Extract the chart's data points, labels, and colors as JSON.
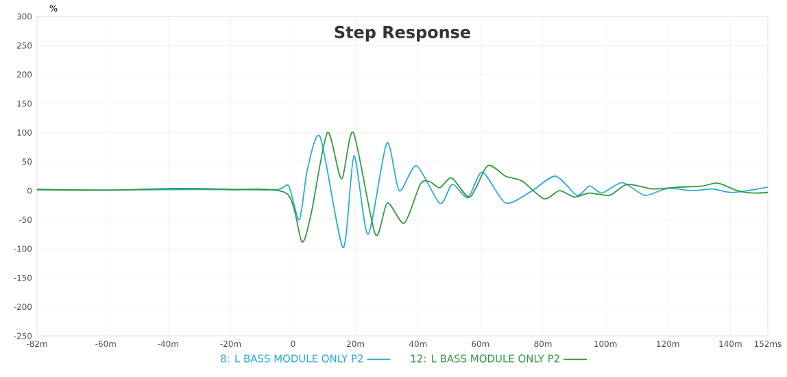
{
  "chart_data": {
    "type": "line",
    "title": "Step Response",
    "ylabel": "%",
    "xlim": [
      -82,
      152
    ],
    "ylim": [
      -250,
      300
    ],
    "xticks": [
      {
        "value": -82,
        "label": "-82m"
      },
      {
        "value": -60,
        "label": "-60m"
      },
      {
        "value": -40,
        "label": "-40m"
      },
      {
        "value": -20,
        "label": "-20m"
      },
      0,
      {
        "value": 20,
        "label": "20m"
      },
      {
        "value": 40,
        "label": "40m"
      },
      {
        "value": 60,
        "label": "60m"
      },
      {
        "value": 80,
        "label": "80m"
      },
      {
        "value": 100,
        "label": "100m"
      },
      {
        "value": 120,
        "label": "120m"
      },
      {
        "value": 140,
        "label": "140m"
      },
      {
        "value": 152,
        "label": "152ms"
      }
    ],
    "yticks": [
      -250,
      -200,
      -150,
      -100,
      -50,
      0,
      50,
      100,
      150,
      200,
      250,
      300
    ],
    "grid": true,
    "legend": "bottom",
    "marker": "none",
    "line_style": "solid",
    "series": [
      {
        "name": "8: L BASS MODULE ONLY P2",
        "color": "#29abd6",
        "x": [
          -82,
          -60,
          -40,
          -20,
          -5,
          -1.4,
          2,
          4.6,
          8.7,
          16,
          19.5,
          24,
          30,
          34,
          39.5,
          47,
          51,
          56,
          60.6,
          68,
          76,
          84,
          90.9,
          94.9,
          98.9,
          105.4,
          112.6,
          119.8,
          127.9,
          134.3,
          140.7,
          152
        ],
        "values": [
          2,
          1,
          2,
          2,
          2,
          8,
          -50,
          37,
          92,
          -98,
          60,
          -75,
          82,
          0,
          43,
          -22,
          11,
          -12,
          32,
          -21,
          -2,
          25,
          -8,
          8,
          -4,
          14,
          -8,
          4,
          0,
          3,
          -3,
          6
        ]
      },
      {
        "name": "12: L BASS MODULE ONLY P2",
        "color": "#2e9a3e",
        "x": [
          -82,
          -60,
          -35,
          -20,
          -2,
          2.8,
          5.8,
          11,
          15.5,
          19.3,
          26.3,
          30.2,
          35.6,
          40.7,
          43.6,
          47,
          50.8,
          56.6,
          62.3,
          68,
          73.2,
          80.4,
          85.3,
          90.1,
          94.9,
          101.3,
          107,
          115,
          123,
          131,
          135.9,
          142.3,
          147.2,
          152
        ],
        "values": [
          2,
          1,
          4,
          2,
          -5,
          -88,
          -39,
          100,
          20,
          100,
          -75,
          -21,
          -56,
          11,
          16,
          5,
          22,
          -11,
          43,
          25,
          17,
          -14,
          0,
          -11,
          -4,
          -8,
          11,
          3,
          6,
          8,
          13,
          0,
          -4,
          -3
        ]
      }
    ]
  }
}
